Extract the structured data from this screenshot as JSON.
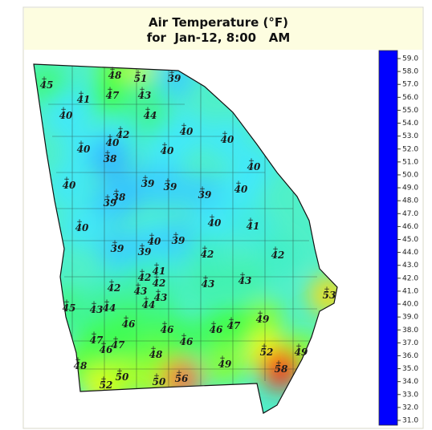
{
  "map": {
    "title": "Air Temperature (°F)",
    "subtitle": "for  Jan-12, 8:00   AM",
    "stations": [
      45,
      48,
      51,
      39,
      41,
      47,
      43,
      40,
      44,
      40,
      42,
      40,
      40,
      40,
      40,
      38,
      40,
      40,
      39,
      39,
      38,
      39,
      39,
      40,
      40,
      41,
      40,
      40,
      39,
      39,
      39,
      42,
      42,
      41,
      42,
      42,
      43,
      43,
      42,
      43,
      43,
      44,
      53,
      45,
      43,
      44,
      49,
      46,
      46,
      46,
      47,
      47,
      47,
      46,
      46,
      48,
      52,
      49,
      48,
      49,
      58,
      52,
      50,
      50,
      56
    ],
    "colorbar_ticks": [
      {
        "value": 59,
        "label": "59.0"
      },
      {
        "value": 58,
        "label": "58.0"
      },
      {
        "value": 57,
        "label": "57.0"
      },
      {
        "value": 56,
        "label": "56.0"
      },
      {
        "value": 55,
        "label": "55.0"
      },
      {
        "value": 54,
        "label": "54.0"
      },
      {
        "value": 53,
        "label": "53.0"
      },
      {
        "value": 52,
        "label": "52.0"
      },
      {
        "value": 51,
        "label": "51.0"
      },
      {
        "value": 50,
        "label": "50.0"
      },
      {
        "value": 49,
        "label": "49.0"
      },
      {
        "value": 48,
        "label": "48.0"
      },
      {
        "value": 47,
        "label": "47.0"
      },
      {
        "value": 46,
        "label": "46.0"
      },
      {
        "value": 45,
        "label": "45.0"
      },
      {
        "value": 44,
        "label": "44.0"
      },
      {
        "value": 43,
        "label": "43.0"
      },
      {
        "value": 42,
        "label": "42.0"
      },
      {
        "value": 41,
        "label": "41.0"
      },
      {
        "value": 40,
        "label": "40.0"
      },
      {
        "value": 39,
        "label": "39.0"
      },
      {
        "value": 38,
        "label": "38.0"
      },
      {
        "value": 37,
        "label": "37.0"
      },
      {
        "value": 36,
        "label": "36.0"
      },
      {
        "value": 35,
        "label": "35.0"
      },
      {
        "value": 34,
        "label": "34.0"
      },
      {
        "value": 33,
        "label": "33.0"
      },
      {
        "value": 32,
        "label": "32.0"
      },
      {
        "value": 31,
        "label": "31.0"
      }
    ]
  }
}
